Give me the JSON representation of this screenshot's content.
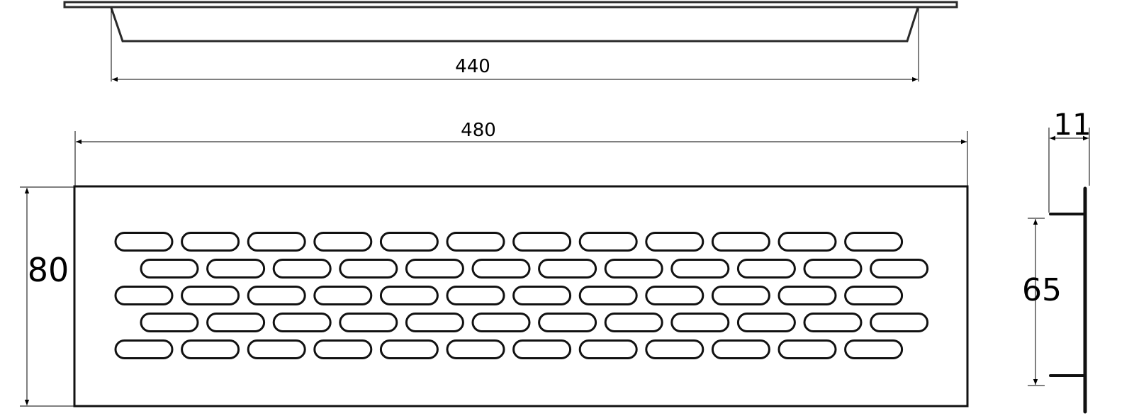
{
  "dimensions": {
    "inner_length": "440",
    "outer_length": "480",
    "height": "80",
    "inner_height": "65",
    "depth": "11"
  },
  "grille": {
    "rows": 5,
    "slots_per_row": 12
  },
  "colors": {
    "line": "#1a1a1a",
    "background": "#ffffff"
  }
}
